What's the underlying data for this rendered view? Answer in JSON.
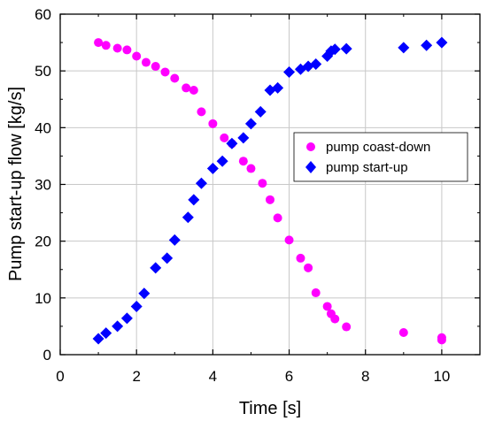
{
  "chart_data": {
    "type": "scatter",
    "title": "",
    "xlabel": "Time [s]",
    "ylabel": "Pump start-up flow [kg/s]",
    "xlim": [
      0,
      11
    ],
    "ylim": [
      0,
      60
    ],
    "xticks": [
      0,
      2,
      4,
      6,
      8,
      10
    ],
    "yticks": [
      0,
      10,
      20,
      30,
      40,
      50,
      60
    ],
    "grid": true,
    "legend_position": "center-right",
    "series": [
      {
        "name": "pump coast-down",
        "marker": "circle",
        "color": "#ff00ff",
        "x": [
          1.0,
          1.2,
          1.5,
          1.75,
          2.0,
          2.25,
          2.5,
          2.75,
          3.0,
          3.3,
          3.5,
          3.7,
          4.0,
          4.3,
          4.5,
          4.8,
          5.0,
          5.3,
          5.5,
          5.7,
          6.0,
          6.3,
          6.5,
          6.7,
          7.0,
          7.1,
          7.2,
          7.5,
          9.0,
          10.0,
          10.0
        ],
        "y": [
          55.0,
          54.5,
          54.0,
          53.7,
          52.6,
          51.5,
          50.8,
          49.8,
          48.7,
          47.0,
          46.6,
          42.8,
          40.7,
          38.2,
          37.2,
          34.1,
          32.8,
          30.2,
          27.3,
          24.1,
          20.2,
          17.0,
          15.3,
          10.9,
          8.5,
          7.2,
          6.3,
          4.9,
          3.9,
          3.0,
          2.6
        ]
      },
      {
        "name": "pump start-up",
        "marker": "diamond",
        "color": "#0000ff",
        "x": [
          1.0,
          1.2,
          1.5,
          1.75,
          2.0,
          2.2,
          2.5,
          2.8,
          3.0,
          3.35,
          3.5,
          3.7,
          4.0,
          4.25,
          4.5,
          4.8,
          5.0,
          5.25,
          5.5,
          5.7,
          6.0,
          6.3,
          6.5,
          6.7,
          7.0,
          7.1,
          7.2,
          7.5,
          9.0,
          9.6,
          10.0
        ],
        "y": [
          2.8,
          3.8,
          5.0,
          6.4,
          8.5,
          10.8,
          15.3,
          17.0,
          20.2,
          24.2,
          27.3,
          30.2,
          32.8,
          34.1,
          37.2,
          38.2,
          40.7,
          42.8,
          46.6,
          47.0,
          49.8,
          50.3,
          50.8,
          51.2,
          52.6,
          53.5,
          53.8,
          53.9,
          54.1,
          54.5,
          55.0
        ]
      }
    ]
  }
}
